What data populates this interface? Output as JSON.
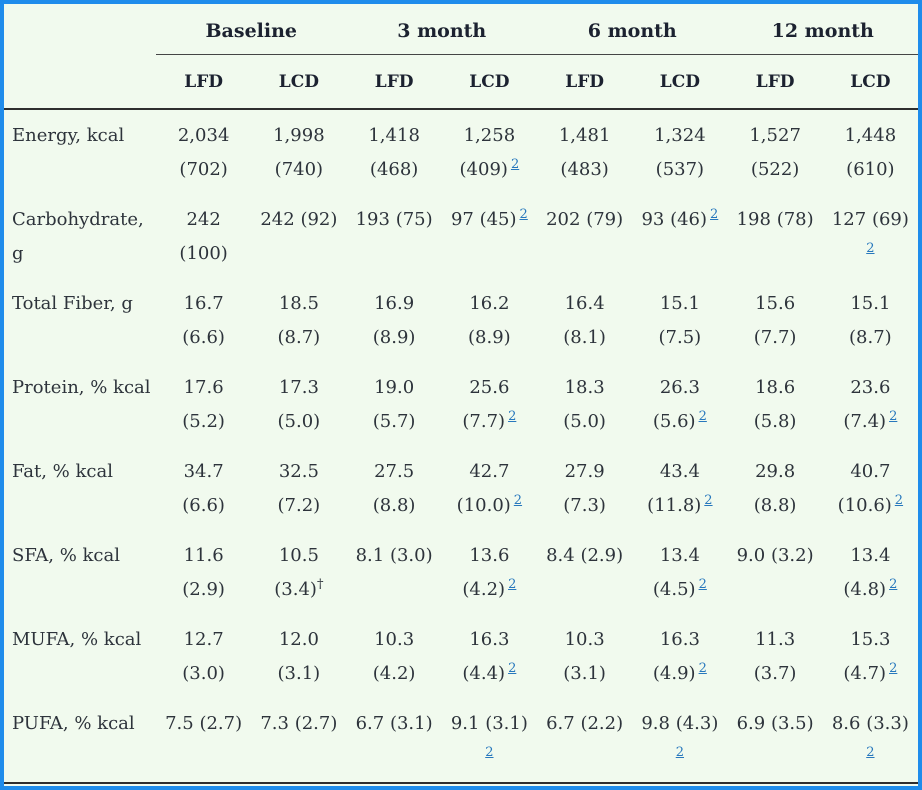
{
  "colors": {
    "border": "#1f8ceb",
    "background": "#f1faee",
    "text": "#2d333b",
    "heading": "#1c2230",
    "footnote_link": "#2878bd"
  },
  "footnote_marker": "2",
  "dagger_marker": "†",
  "table": {
    "header": {
      "corner": "",
      "groups": [
        "Baseline",
        "3 month",
        "6 month",
        "12 month"
      ],
      "sub": [
        "LFD",
        "LCD"
      ]
    },
    "rows": [
      {
        "label": "Energy, kcal",
        "cells": [
          {
            "v": "2,034",
            "sd": "(702)"
          },
          {
            "v": "1,998",
            "sd": "(740)"
          },
          {
            "v": "1,418",
            "sd": "(468)"
          },
          {
            "v": "1,258",
            "sd": "(409)",
            "fn": "2"
          },
          {
            "v": "1,481",
            "sd": "(483)"
          },
          {
            "v": "1,324",
            "sd": "(537)"
          },
          {
            "v": "1,527",
            "sd": "(522)"
          },
          {
            "v": "1,448",
            "sd": "(610)"
          }
        ]
      },
      {
        "label": "Carbohydrate, g",
        "cells": [
          {
            "v": "242",
            "sd": "(100)"
          },
          {
            "v": "242 (92)"
          },
          {
            "v": "193 (75)"
          },
          {
            "v": "97 (45)",
            "fn": "2"
          },
          {
            "v": "202 (79)"
          },
          {
            "v": "93 (46)",
            "fn": "2"
          },
          {
            "v": "198 (78)"
          },
          {
            "v": "127 (69)",
            "fn": "2",
            "fnBreak": true
          }
        ]
      },
      {
        "label": "Total Fiber, g",
        "cells": [
          {
            "v": "16.7",
            "sd": "(6.6)"
          },
          {
            "v": "18.5",
            "sd": "(8.7)"
          },
          {
            "v": "16.9",
            "sd": "(8.9)"
          },
          {
            "v": "16.2",
            "sd": "(8.9)"
          },
          {
            "v": "16.4",
            "sd": "(8.1)"
          },
          {
            "v": "15.1",
            "sd": "(7.5)"
          },
          {
            "v": "15.6",
            "sd": "(7.7)"
          },
          {
            "v": "15.1",
            "sd": "(8.7)"
          }
        ]
      },
      {
        "label": "Protein, % kcal",
        "cells": [
          {
            "v": "17.6",
            "sd": "(5.2)"
          },
          {
            "v": "17.3",
            "sd": "(5.0)"
          },
          {
            "v": "19.0",
            "sd": "(5.7)"
          },
          {
            "v": "25.6",
            "sd": "(7.7)",
            "fn": "2"
          },
          {
            "v": "18.3",
            "sd": "(5.0)"
          },
          {
            "v": "26.3",
            "sd": "(5.6)",
            "fn": "2"
          },
          {
            "v": "18.6",
            "sd": "(5.8)"
          },
          {
            "v": "23.6",
            "sd": "(7.4)",
            "fn": "2"
          }
        ]
      },
      {
        "label": "Fat, % kcal",
        "cells": [
          {
            "v": "34.7",
            "sd": "(6.6)"
          },
          {
            "v": "32.5",
            "sd": "(7.2)"
          },
          {
            "v": "27.5",
            "sd": "(8.8)"
          },
          {
            "v": "42.7",
            "sd": "(10.0)",
            "fn": "2"
          },
          {
            "v": "27.9",
            "sd": "(7.3)"
          },
          {
            "v": "43.4",
            "sd": "(11.8)",
            "fn": "2"
          },
          {
            "v": "29.8",
            "sd": "(8.8)"
          },
          {
            "v": "40.7",
            "sd": "(10.6)",
            "fn": "2"
          }
        ]
      },
      {
        "label": "SFA, % kcal",
        "cells": [
          {
            "v": "11.6",
            "sd": "(2.9)"
          },
          {
            "v": "10.5",
            "sd": "(3.4)",
            "dagger": true
          },
          {
            "v": "8.1 (3.0)"
          },
          {
            "v": "13.6",
            "sd": "(4.2)",
            "fn": "2"
          },
          {
            "v": "8.4 (2.9)"
          },
          {
            "v": "13.4",
            "sd": "(4.5)",
            "fn": "2"
          },
          {
            "v": "9.0 (3.2)"
          },
          {
            "v": "13.4",
            "sd": "(4.8)",
            "fn": "2"
          }
        ]
      },
      {
        "label": "MUFA, % kcal",
        "cells": [
          {
            "v": "12.7",
            "sd": "(3.0)"
          },
          {
            "v": "12.0",
            "sd": "(3.1)"
          },
          {
            "v": "10.3",
            "sd": "(4.2)"
          },
          {
            "v": "16.3",
            "sd": "(4.4)",
            "fn": "2"
          },
          {
            "v": "10.3",
            "sd": "(3.1)"
          },
          {
            "v": "16.3",
            "sd": "(4.9)",
            "fn": "2"
          },
          {
            "v": "11.3",
            "sd": "(3.7)"
          },
          {
            "v": "15.3",
            "sd": "(4.7)",
            "fn": "2"
          }
        ]
      },
      {
        "label": "PUFA, % kcal",
        "cells": [
          {
            "v": "7.5 (2.7)"
          },
          {
            "v": "7.3 (2.7)"
          },
          {
            "v": "6.7 (3.1)"
          },
          {
            "v": "9.1 (3.1)",
            "fn": "2",
            "fnBreak": true
          },
          {
            "v": "6.7 (2.2)"
          },
          {
            "v": "9.8 (4.3)",
            "fn": "2",
            "fnBreak": true
          },
          {
            "v": "6.9 (3.5)"
          },
          {
            "v": "8.6 (3.3)",
            "fn": "2",
            "fnBreak": true
          }
        ]
      }
    ]
  }
}
